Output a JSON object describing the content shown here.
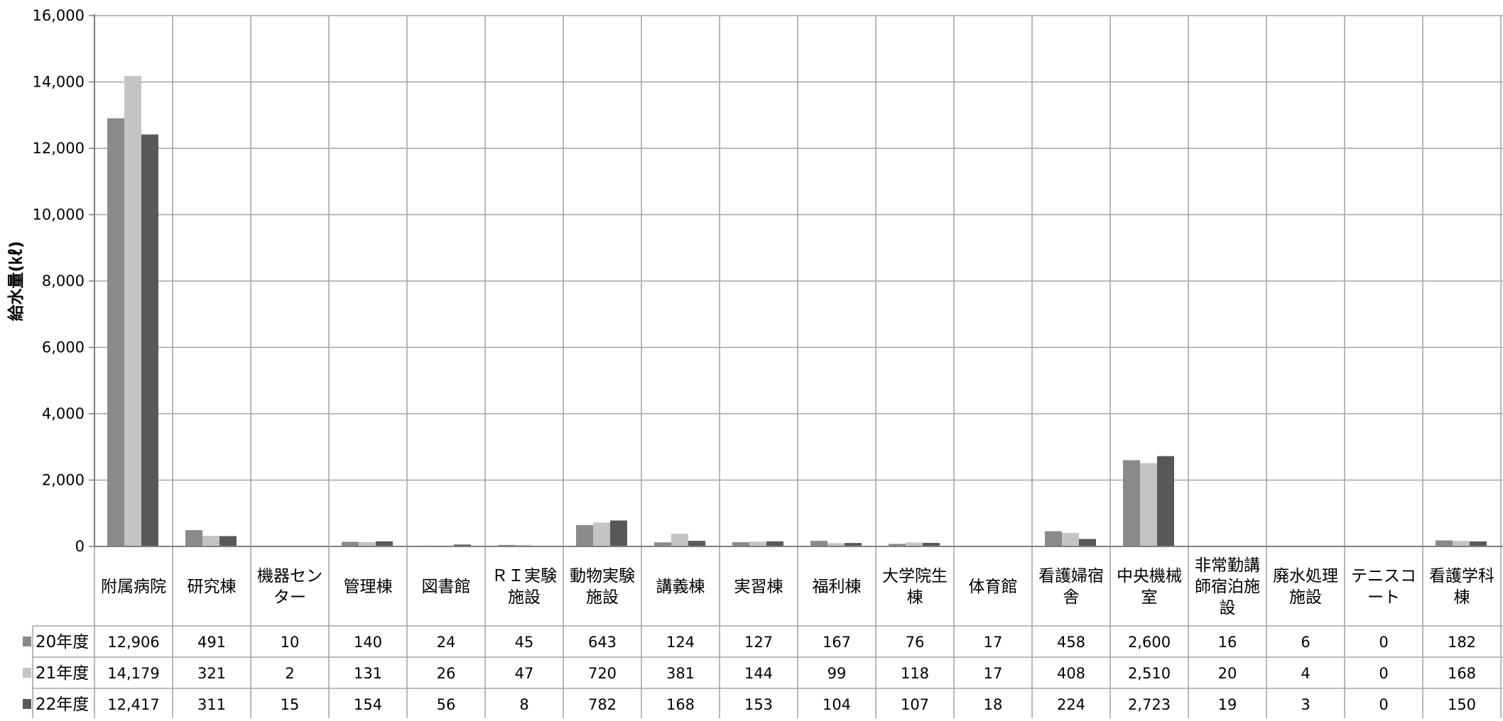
{
  "chart_data": {
    "type": "bar",
    "title": "",
    "xlabel": "",
    "ylabel": "給水量(㎘)",
    "ylim": [
      0,
      16000
    ],
    "yticks": [
      0,
      2000,
      4000,
      6000,
      8000,
      10000,
      12000,
      14000,
      16000
    ],
    "ytick_labels": [
      "0",
      "2,000",
      "4,000",
      "6,000",
      "8,000",
      "10,000",
      "12,000",
      "14,000",
      "16,000"
    ],
    "grid": true,
    "legend": "data-table",
    "categories": [
      [
        "附属病院"
      ],
      [
        "研究棟"
      ],
      [
        "機器セン",
        "ター"
      ],
      [
        "管理棟"
      ],
      [
        "図書館"
      ],
      [
        "ＲＩ実験",
        "施設"
      ],
      [
        "動物実験",
        "施設"
      ],
      [
        "講義棟"
      ],
      [
        "実習棟"
      ],
      [
        "福利棟"
      ],
      [
        "大学院生",
        "棟"
      ],
      [
        "体育館"
      ],
      [
        "看護婦宿",
        "舎"
      ],
      [
        "中央機械",
        "室"
      ],
      [
        "非常勤講",
        "師宿泊施",
        "設"
      ],
      [
        "廃水処理",
        "施設"
      ],
      [
        "テニスコ",
        "ート"
      ],
      [
        "看護学科",
        "棟"
      ]
    ],
    "series": [
      {
        "name": "20年度",
        "color": "#8a8a8a",
        "values": [
          12906,
          491,
          10,
          140,
          24,
          45,
          643,
          124,
          127,
          167,
          76,
          17,
          458,
          2600,
          16,
          6,
          0,
          182
        ],
        "labels": [
          "12,906",
          "491",
          "10",
          "140",
          "24",
          "45",
          "643",
          "124",
          "127",
          "167",
          "76",
          "17",
          "458",
          "2,600",
          "16",
          "6",
          "0",
          "182"
        ]
      },
      {
        "name": "21年度",
        "color": "#c4c4c4",
        "values": [
          14179,
          321,
          2,
          131,
          26,
          47,
          720,
          381,
          144,
          99,
          118,
          17,
          408,
          2510,
          20,
          4,
          0,
          168
        ],
        "labels": [
          "14,179",
          "321",
          "2",
          "131",
          "26",
          "47",
          "720",
          "381",
          "144",
          "99",
          "118",
          "17",
          "408",
          "2,510",
          "20",
          "4",
          "0",
          "168"
        ]
      },
      {
        "name": "22年度",
        "color": "#585858",
        "values": [
          12417,
          311,
          15,
          154,
          56,
          8,
          782,
          168,
          153,
          104,
          107,
          18,
          224,
          2723,
          19,
          3,
          0,
          150
        ],
        "labels": [
          "12,417",
          "311",
          "15",
          "154",
          "56",
          "8",
          "782",
          "168",
          "153",
          "104",
          "107",
          "18",
          "224",
          "2,723",
          "19",
          "3",
          "0",
          "150"
        ]
      }
    ]
  }
}
